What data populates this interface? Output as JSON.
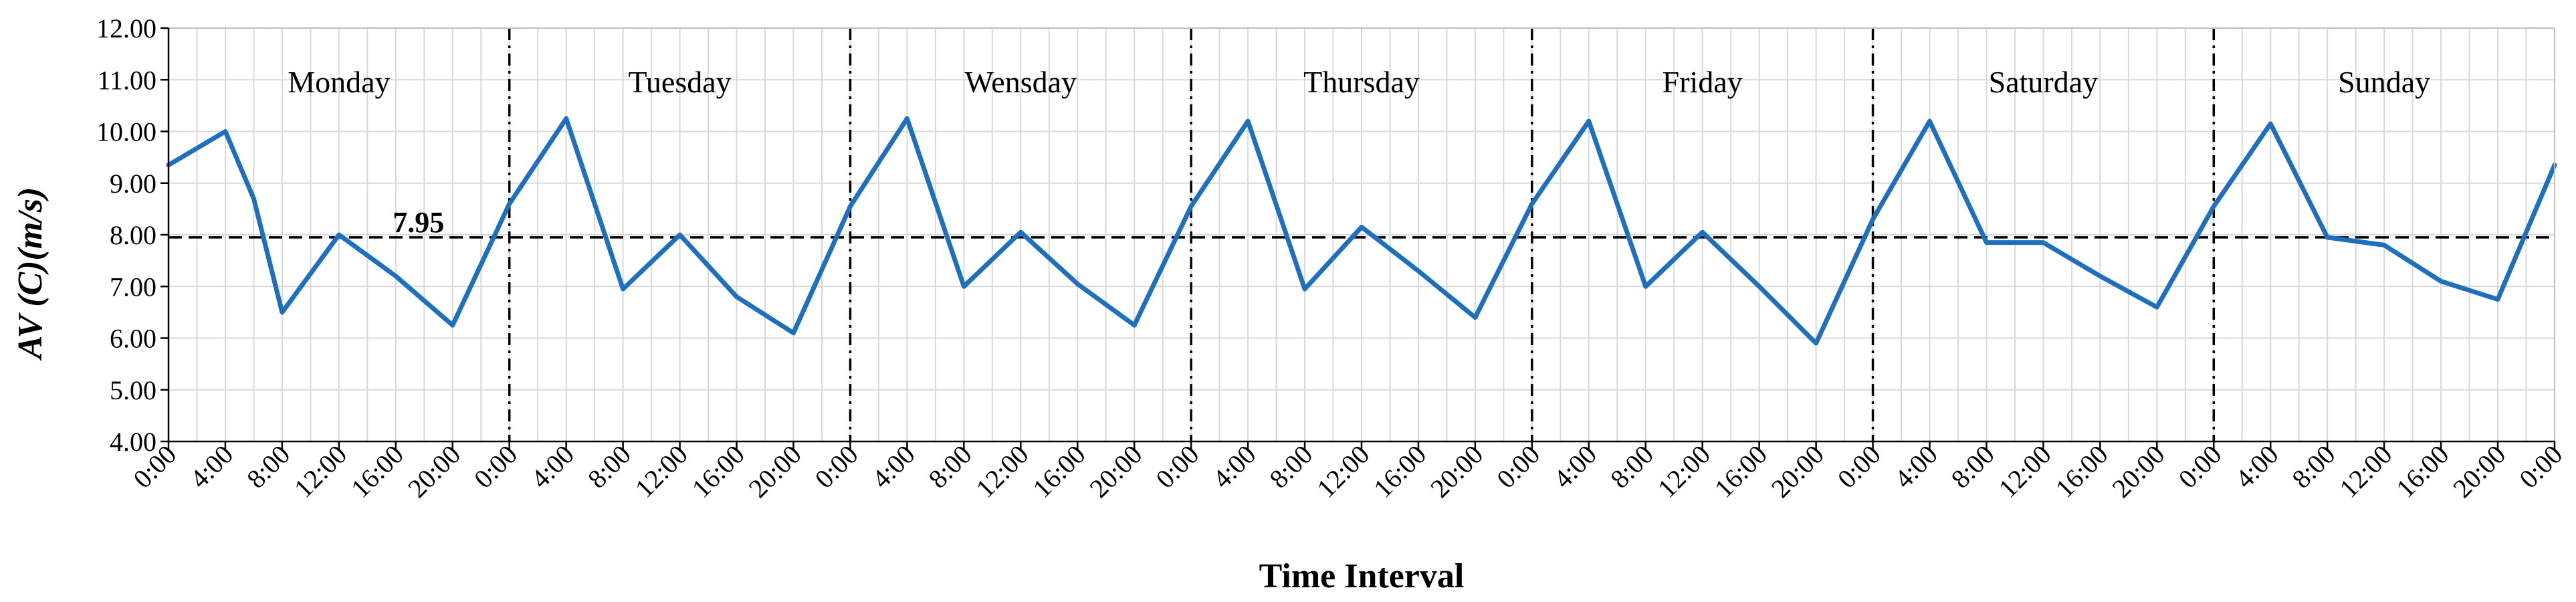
{
  "chart_data": {
    "type": "line",
    "xlabel": "Time Interval",
    "ylabel": "AV (C)(m/s)",
    "ylim": [
      4.0,
      12.0
    ],
    "y_ticks": [
      "4.00",
      "5.00",
      "6.00",
      "7.00",
      "8.00",
      "9.00",
      "10.00",
      "11.00",
      "12.00"
    ],
    "x_tick_labels": [
      "0:00",
      "4:00",
      "8:00",
      "12:00",
      "16:00",
      "20:00",
      "0:00",
      "4:00",
      "8:00",
      "12:00",
      "16:00",
      "20:00",
      "0:00",
      "4:00",
      "8:00",
      "12:00",
      "16:00",
      "20:00",
      "0:00",
      "4:00",
      "8:00",
      "12:00",
      "16:00",
      "20:00",
      "0:00",
      "4:00",
      "8:00",
      "12:00",
      "16:00",
      "20:00",
      "0:00",
      "4:00",
      "8:00",
      "12:00",
      "16:00",
      "20:00",
      "0:00",
      "4:00",
      "8:00",
      "12:00",
      "16:00",
      "20:00",
      "0:00"
    ],
    "grid": true,
    "days": [
      "Monday",
      "Tuesday",
      "Wensday",
      "Thursday",
      "Friday",
      "Saturday",
      "Sunday"
    ],
    "mean_line": {
      "value": 7.95,
      "label": "7.95",
      "style": "dashed"
    },
    "day_separators": "dash-dot",
    "series": [
      {
        "color": "#1F6FBF",
        "x_hours": [
          0,
          4,
          6,
          8,
          12,
          16,
          20,
          24,
          28,
          32,
          36,
          40,
          44,
          48,
          52,
          56,
          60,
          64,
          68,
          72,
          76,
          80,
          84,
          88,
          92,
          96,
          100,
          104,
          108,
          112,
          116,
          120,
          124,
          128,
          132,
          136,
          140,
          144,
          148,
          152,
          156,
          160,
          164,
          168
        ],
        "values": [
          9.35,
          10.0,
          8.7,
          6.5,
          8.0,
          7.2,
          6.25,
          8.6,
          10.25,
          6.95,
          8.0,
          6.8,
          6.1,
          8.55,
          10.25,
          7.0,
          8.05,
          7.05,
          6.25,
          8.55,
          10.2,
          6.95,
          8.15,
          7.3,
          6.4,
          8.6,
          10.2,
          7.0,
          8.05,
          7.0,
          5.9,
          8.3,
          10.2,
          7.85,
          7.85,
          7.2,
          6.6,
          8.55,
          10.15,
          7.95,
          7.8,
          7.1,
          6.75,
          9.35
        ]
      }
    ]
  }
}
